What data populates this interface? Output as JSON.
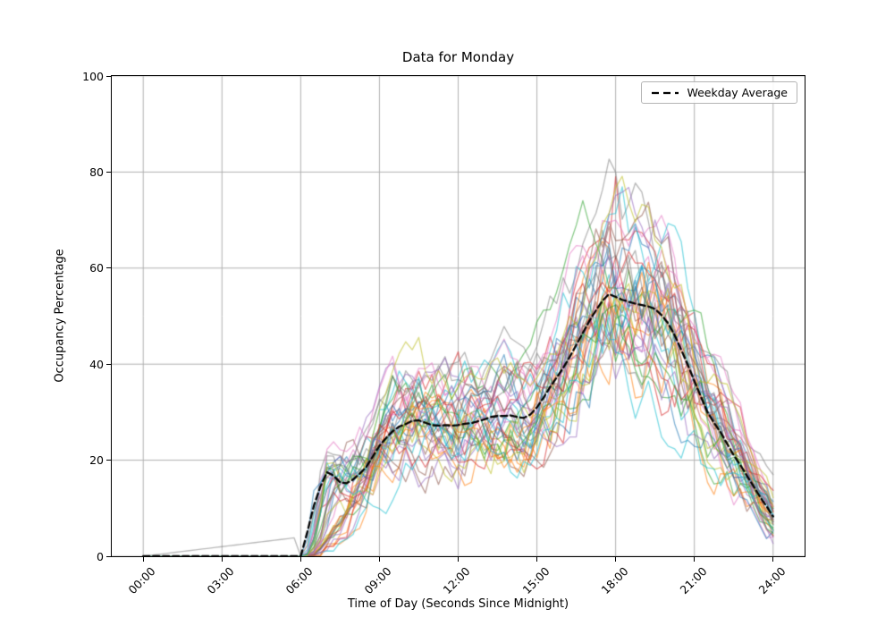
{
  "chart_data": {
    "type": "line",
    "title": "Data for Monday",
    "xlabel": "Time of Day (Seconds Since Midnight)",
    "ylabel": "Occupancy Percentage",
    "ylim": [
      0,
      100
    ],
    "xlim_hours": [
      -1.2,
      25.2
    ],
    "x_tick_hours": [
      0,
      3,
      6,
      9,
      12,
      15,
      18,
      21,
      24
    ],
    "x_tick_labels": [
      "00:00",
      "03:00",
      "06:00",
      "09:00",
      "12:00",
      "15:00",
      "18:00",
      "21:00",
      "24:00"
    ],
    "y_ticks": [
      0,
      20,
      40,
      60,
      80,
      100
    ],
    "y_tick_labels": [
      "0",
      "20",
      "40",
      "60",
      "80",
      "100"
    ],
    "grid": true,
    "grid_color": "#b0b0b0",
    "legend": {
      "label": "Weekday Average",
      "position": "upper right",
      "style": "dashed",
      "color": "#000000"
    },
    "average_series": {
      "name": "Weekday Average",
      "color": "#000000",
      "style": "dashed",
      "interval_minutes": 15,
      "start_hour": 0,
      "values": [
        0,
        0,
        0,
        0,
        0,
        0,
        0,
        0,
        0,
        0,
        0,
        0,
        0,
        0,
        0,
        0,
        0,
        0,
        0,
        0,
        0,
        0,
        0,
        0,
        0,
        5,
        10.5,
        14.5,
        17.5,
        16.8,
        15.4,
        15.2,
        16,
        17.2,
        18.6,
        20.8,
        23,
        24.6,
        26,
        27,
        27.5,
        28.2,
        28.3,
        27.8,
        27.3,
        27.2,
        27.3,
        27.2,
        27.3,
        27.6,
        27.7,
        28.1,
        28.5,
        29,
        29.2,
        29.2,
        29.3,
        29,
        28.8,
        29.5,
        31,
        33,
        35.2,
        37.2,
        39.2,
        41.5,
        44,
        46.5,
        49,
        51.2,
        53.2,
        54.6,
        54,
        53.4,
        53,
        52.6,
        52.3,
        52,
        51.5,
        50.2,
        48.5,
        46,
        43,
        39.8,
        36.5,
        33.2,
        30,
        27.8,
        25.8,
        23.4,
        21,
        19,
        16.8,
        14.6,
        12.4,
        10.4,
        8.3
      ]
    },
    "individual_series": {
      "count": 40,
      "alpha": 0.55,
      "line_width": 1.35,
      "colors": [
        "#1f77b4",
        "#ff7f0e",
        "#2ca02c",
        "#d62728",
        "#9467bd",
        "#8c564b",
        "#e377c2",
        "#7f7f7f",
        "#bcbd22",
        "#17becf"
      ],
      "seed": 42,
      "gain_range": [
        0.78,
        1.3
      ],
      "noise": {
        "persistence": 0.8,
        "base": 1.5,
        "proportional": 0.12
      },
      "morning_ramp_hours": [
        0.3,
        2.8
      ],
      "pre_dawn_ramp_series": {
        "index": 7,
        "value_at_6": 4
      },
      "outlier": {
        "series_index": 3,
        "hour": 18,
        "peak_value": 79
      },
      "observed_spread": {
        "07:00": [
          3,
          27
        ],
        "12:00": [
          14,
          49
        ],
        "18:00": [
          35,
          79
        ],
        "21:00": [
          18,
          55
        ],
        "24:00": [
          2,
          23
        ]
      }
    }
  }
}
